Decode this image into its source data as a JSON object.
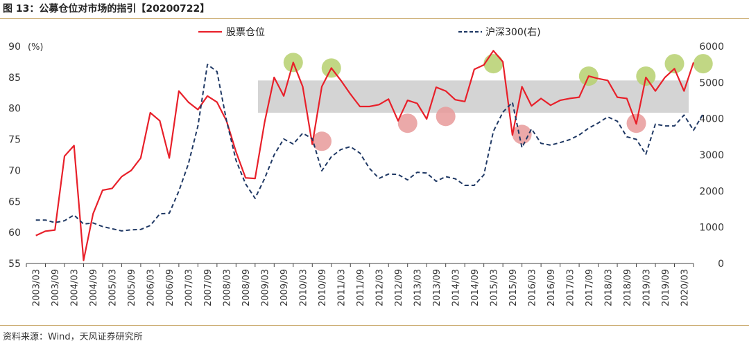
{
  "header": {
    "title": "图 13：公募仓位对市场的指引【20200722】"
  },
  "footer": {
    "source": "资料来源：Wind，天风证券研究所"
  },
  "chart_data": {
    "type": "line",
    "title": "公募仓位对市场的指引",
    "xlabel": "",
    "ylabel": "(%)",
    "left_axis": {
      "range": [
        55,
        90
      ],
      "ticks": [
        55,
        60,
        65,
        70,
        75,
        80,
        85,
        90
      ],
      "unit": "(%)"
    },
    "right_axis": {
      "range": [
        0,
        6000
      ],
      "ticks": [
        0,
        1000,
        2000,
        3000,
        4000,
        5000,
        6000
      ]
    },
    "x_tick_labels": [
      "2003/03",
      "2003/09",
      "2004/03",
      "2004/09",
      "2005/03",
      "2005/09",
      "2006/03",
      "2006/09",
      "2007/03",
      "2007/09",
      "2008/03",
      "2008/09",
      "2009/03",
      "2009/09",
      "2010/03",
      "2010/09",
      "2011/03",
      "2011/09",
      "2012/03",
      "2012/09",
      "2013/03",
      "2013/09",
      "2014/03",
      "2014/09",
      "2015/03",
      "2015/09",
      "2016/03",
      "2016/09",
      "2017/03",
      "2017/09",
      "2018/03",
      "2018/09",
      "2019/03",
      "2019/09",
      "2020/03"
    ],
    "band": {
      "range": [
        79.3,
        84.5
      ],
      "label": ""
    },
    "legend_position": "top-center",
    "series": [
      {
        "name": "股票仓位",
        "axis": "left",
        "color": "#e8202a",
        "style": "solid",
        "points": [
          [
            0,
            59.5
          ],
          [
            0.5,
            60.2
          ],
          [
            1,
            60.4
          ],
          [
            1.5,
            72.3
          ],
          [
            2,
            74
          ],
          [
            2.5,
            55.5
          ],
          [
            3,
            63
          ],
          [
            3.5,
            66.8
          ],
          [
            4,
            67.1
          ],
          [
            4.5,
            69
          ],
          [
            5,
            70
          ],
          [
            5.5,
            72
          ],
          [
            6,
            79.3
          ],
          [
            6.5,
            78
          ],
          [
            7,
            72
          ],
          [
            7.5,
            82.8
          ],
          [
            8,
            81
          ],
          [
            8.5,
            79.8
          ],
          [
            9,
            82
          ],
          [
            9.5,
            81
          ],
          [
            10,
            78
          ],
          [
            10.5,
            73
          ],
          [
            11,
            68.8
          ],
          [
            11.5,
            68.7
          ],
          [
            12,
            77.8
          ],
          [
            12.5,
            85
          ],
          [
            13,
            82
          ],
          [
            13.5,
            87.4
          ],
          [
            14,
            83.5
          ],
          [
            14.5,
            74.2
          ],
          [
            15,
            83.5
          ],
          [
            15.5,
            86.5
          ],
          [
            16,
            84.5
          ],
          [
            16.5,
            82.3
          ],
          [
            17,
            80.3
          ],
          [
            17.5,
            80.3
          ],
          [
            18,
            80.6
          ],
          [
            18.5,
            81.5
          ],
          [
            19,
            78
          ],
          [
            19.5,
            81.3
          ],
          [
            20,
            80.8
          ],
          [
            20.5,
            78.3
          ],
          [
            21,
            83.4
          ],
          [
            21.5,
            82.8
          ],
          [
            22,
            81.4
          ],
          [
            22.5,
            81.1
          ],
          [
            23,
            86.3
          ],
          [
            23.5,
            87
          ],
          [
            24,
            89.3
          ],
          [
            24.5,
            87.5
          ],
          [
            25,
            75.7
          ],
          [
            25.5,
            83.5
          ],
          [
            26,
            80.4
          ],
          [
            26.5,
            81.6
          ],
          [
            27,
            80.5
          ],
          [
            27.5,
            81.3
          ],
          [
            28,
            81.6
          ],
          [
            28.5,
            81.8
          ],
          [
            29,
            85.2
          ],
          [
            29.5,
            84.8
          ],
          [
            30,
            84.5
          ],
          [
            30.5,
            81.8
          ],
          [
            31,
            81.6
          ],
          [
            31.5,
            77.5
          ],
          [
            32,
            85
          ],
          [
            32.5,
            82.8
          ],
          [
            33,
            85
          ],
          [
            33.5,
            86.4
          ],
          [
            34,
            82.8
          ],
          [
            34.5,
            87.4
          ]
        ]
      },
      {
        "name": "沪深300(右)",
        "axis": "right",
        "color": "#1f3864",
        "style": "dashed",
        "points": [
          [
            0,
            1200
          ],
          [
            0.5,
            1200
          ],
          [
            1,
            1130
          ],
          [
            1.5,
            1180
          ],
          [
            2,
            1340
          ],
          [
            2.5,
            1090
          ],
          [
            3,
            1120
          ],
          [
            3.5,
            1020
          ],
          [
            4,
            960
          ],
          [
            4.5,
            900
          ],
          [
            5,
            930
          ],
          [
            5.5,
            940
          ],
          [
            6,
            1050
          ],
          [
            6.5,
            1370
          ],
          [
            7,
            1390
          ],
          [
            7.5,
            2000
          ],
          [
            8,
            2750
          ],
          [
            8.5,
            3800
          ],
          [
            9,
            5500
          ],
          [
            9.5,
            5300
          ],
          [
            10,
            3950
          ],
          [
            10.5,
            2850
          ],
          [
            11,
            2200
          ],
          [
            11.5,
            1800
          ],
          [
            12,
            2350
          ],
          [
            12.5,
            3000
          ],
          [
            13,
            3440
          ],
          [
            13.5,
            3300
          ],
          [
            14,
            3600
          ],
          [
            14.5,
            3450
          ],
          [
            15,
            2560
          ],
          [
            15.5,
            2950
          ],
          [
            16,
            3150
          ],
          [
            16.5,
            3230
          ],
          [
            17,
            3050
          ],
          [
            17.5,
            2630
          ],
          [
            18,
            2350
          ],
          [
            18.5,
            2470
          ],
          [
            19,
            2460
          ],
          [
            19.5,
            2310
          ],
          [
            20,
            2520
          ],
          [
            20.5,
            2500
          ],
          [
            21,
            2270
          ],
          [
            21.5,
            2400
          ],
          [
            22,
            2340
          ],
          [
            22.5,
            2160
          ],
          [
            23,
            2160
          ],
          [
            23.5,
            2450
          ],
          [
            24,
            3650
          ],
          [
            24.5,
            4180
          ],
          [
            25,
            4450
          ],
          [
            25.5,
            3200
          ],
          [
            26,
            3720
          ],
          [
            26.5,
            3320
          ],
          [
            27,
            3270
          ],
          [
            27.5,
            3340
          ],
          [
            28,
            3420
          ],
          [
            28.5,
            3550
          ],
          [
            29,
            3740
          ],
          [
            29.5,
            3880
          ],
          [
            30,
            4050
          ],
          [
            30.5,
            3930
          ],
          [
            31,
            3500
          ],
          [
            31.5,
            3430
          ],
          [
            32,
            3020
          ],
          [
            32.5,
            3850
          ],
          [
            33,
            3800
          ],
          [
            33.5,
            3800
          ],
          [
            34,
            4100
          ],
          [
            34.5,
            3680
          ],
          [
            35,
            4130
          ]
        ]
      }
    ],
    "markers": [
      {
        "color": "green",
        "x": 13.5,
        "y": 87.4
      },
      {
        "color": "green",
        "x": 15.5,
        "y": 86.5
      },
      {
        "color": "green",
        "x": 24,
        "y": 87.2
      },
      {
        "color": "green",
        "x": 29,
        "y": 85.2
      },
      {
        "color": "green",
        "x": 32,
        "y": 85.2
      },
      {
        "color": "green",
        "x": 33.5,
        "y": 87.2
      },
      {
        "color": "green",
        "x": 35,
        "y": 87.2
      },
      {
        "color": "pink",
        "x": 15,
        "y": 74.7
      },
      {
        "color": "pink",
        "x": 19.5,
        "y": 77.6
      },
      {
        "color": "pink",
        "x": 21.5,
        "y": 78.7
      },
      {
        "color": "pink",
        "x": 25.5,
        "y": 75.8
      },
      {
        "color": "pink",
        "x": 31.5,
        "y": 77.6
      }
    ]
  }
}
